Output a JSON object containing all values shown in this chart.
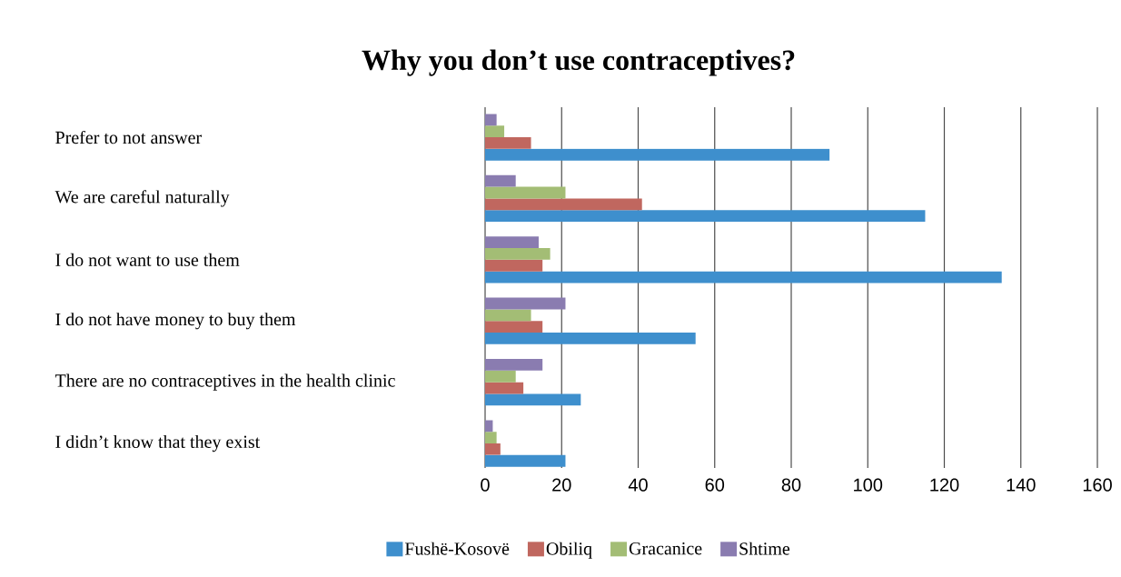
{
  "chart_data": {
    "type": "bar",
    "orientation": "horizontal",
    "title": "Why you don’t use contraceptives?",
    "categories": [
      "Prefer to not answer",
      "We are careful naturally",
      "I do not want to use them",
      "I do not have money to buy them",
      "There are no contraceptives in the health clinic",
      "I didn’t know that they exist"
    ],
    "series": [
      {
        "name": "Fushë-Kosovë",
        "color": "#3e8fcd",
        "values": [
          90,
          115,
          135,
          55,
          25,
          21
        ]
      },
      {
        "name": "Obiliq",
        "color": "#c0675f",
        "values": [
          12,
          41,
          15,
          15,
          10,
          4
        ]
      },
      {
        "name": "Gracanice",
        "color": "#a3bd75",
        "values": [
          5,
          21,
          17,
          12,
          8,
          3
        ]
      },
      {
        "name": "Shtime",
        "color": "#8a7cb0",
        "values": [
          3,
          8,
          14,
          21,
          15,
          2
        ]
      }
    ],
    "xlim": [
      0,
      160
    ],
    "xticks": [
      0,
      20,
      40,
      60,
      80,
      100,
      120,
      140,
      160
    ],
    "grid": "x",
    "legend": "bottom"
  }
}
